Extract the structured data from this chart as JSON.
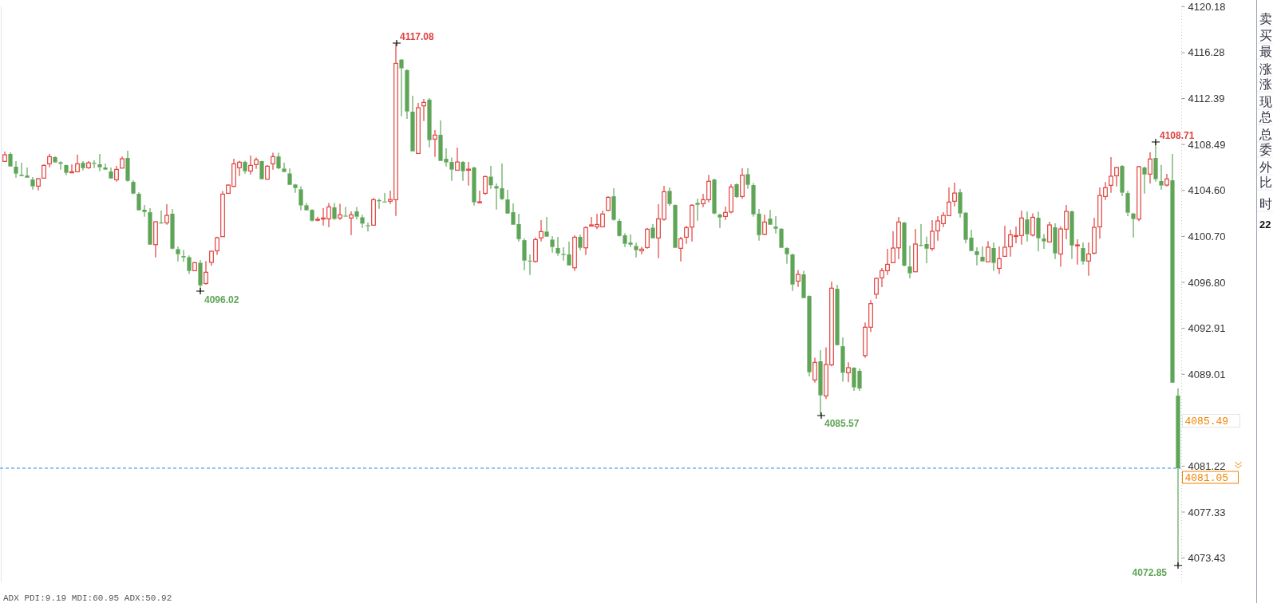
{
  "chart_data": [
    {
      "type": "candlestick",
      "tick_labels": "y",
      "ylim": [
        4071.38,
        4120.2
      ],
      "yticks": [
        4120.18,
        4116.28,
        4112.39,
        4108.49,
        {
          "value": 4104.6,
          "label": "4104.60"
        },
        {
          "value": 4100.7,
          "label": "4100.70"
        },
        {
          "value": 4096.8,
          "label": "4096.80"
        },
        4092.91,
        4089.01,
        4081.22,
        4077.33,
        4073.43
      ],
      "ref_lines": [
        {
          "axis": "y",
          "value": 4081.05,
          "label": "4081.05",
          "color": "#2b8ce8",
          "line_style": "dashed"
        }
      ],
      "annotations": [
        "4117.08",
        "4096.02",
        "4085.57",
        "4108.71",
        "4072.85",
        "4085.49",
        "ADX PDI:9.19 MDI:60.95 ADX:50.92"
      ],
      "ohlc": [
        [
          4107.06,
          4107.89,
          4107.06,
          4107.62
        ],
        [
          4107.69,
          4107.82,
          4106.63,
          4106.63
        ],
        [
          4106.61,
          4107.08,
          4105.68,
          4106.02
        ],
        [
          4105.93,
          4106.94,
          4105.82,
          4105.82
        ],
        [
          4105.86,
          4106.54,
          4105.68,
          4105.68
        ],
        [
          4105.52,
          4105.73,
          4104.67,
          4104.94
        ],
        [
          4104.96,
          4105.66,
          4104.6,
          4105.59
        ],
        [
          4105.64,
          4106.81,
          4105.64,
          4106.72
        ],
        [
          4106.85,
          4107.69,
          4106.56,
          4107.46
        ],
        [
          4107.42,
          4107.49,
          4106.97,
          4106.97
        ],
        [
          4106.99,
          4107.06,
          4106.36,
          4106.85
        ],
        [
          4106.74,
          4106.79,
          4105.89,
          4106.09
        ],
        [
          4106.09,
          4106.81,
          4106.09,
          4106.18
        ],
        [
          4106.18,
          4107.64,
          4106.18,
          4106.85
        ],
        [
          4106.94,
          4107.08,
          4106.29,
          4106.49
        ],
        [
          4106.52,
          4107.08,
          4106.43,
          4106.94
        ],
        [
          4106.94,
          4107.15,
          4106.49,
          4106.85
        ],
        [
          4106.81,
          4107.69,
          4106.22,
          4106.56
        ],
        [
          4106.54,
          4106.88,
          4106.36,
          4106.36
        ],
        [
          4106.2,
          4106.54,
          4105.61,
          4105.61
        ],
        [
          4105.5,
          4106.67,
          4105.34,
          4106.38
        ],
        [
          4106.49,
          4107.49,
          4106.49,
          4107.28
        ],
        [
          4107.35,
          4107.96,
          4105.34,
          4105.41
        ],
        [
          4105.32,
          4105.46,
          4104.28,
          4104.33
        ],
        [
          4104.31,
          4104.44,
          4102.91,
          4102.91
        ],
        [
          4102.96,
          4103.36,
          4102.37,
          4102.77
        ],
        [
          4102.75,
          4103.09,
          4100.0,
          4100.0
        ],
        [
          4100.0,
          4101.99,
          4098.92,
          4101.94
        ],
        [
          4101.88,
          4102.89,
          4101.86,
          4101.86
        ],
        [
          4101.85,
          4103.43,
          4101.69,
          4102.48
        ],
        [
          4102.62,
          4103.02,
          4099.6,
          4099.66
        ],
        [
          4099.62,
          4099.84,
          4098.58,
          4099.19
        ],
        [
          4099.03,
          4099.55,
          4098.54,
          4098.92
        ],
        [
          4098.94,
          4099.08,
          4097.52,
          4097.77
        ],
        [
          4097.79,
          4098.54,
          4097.79,
          4098.47
        ],
        [
          4098.47,
          4098.7,
          4096.02,
          4096.55
        ],
        [
          4096.71,
          4098.61,
          4096.6,
          4097.66
        ],
        [
          4098.5,
          4099.5,
          4098.2,
          4099.44
        ],
        [
          4099.48,
          4100.68,
          4099.14,
          4100.59
        ],
        [
          4100.68,
          4104.55,
          4100.68,
          4104.28
        ],
        [
          4104.35,
          4105.12,
          4104.35,
          4105.05
        ],
        [
          4104.94,
          4107.28,
          4104.87,
          4106.85
        ],
        [
          4106.52,
          4107.12,
          4105.82,
          4106.99
        ],
        [
          4107.01,
          4107.12,
          4106.02,
          4106.22
        ],
        [
          4106.24,
          4107.55,
          4105.95,
          4106.72
        ],
        [
          4106.79,
          4107.39,
          4106.43,
          4107.19
        ],
        [
          4107.08,
          4107.12,
          4105.55,
          4105.55
        ],
        [
          4105.55,
          4106.74,
          4105.55,
          4106.65
        ],
        [
          4106.85,
          4107.8,
          4106.36,
          4107.46
        ],
        [
          4107.48,
          4107.8,
          4106.4,
          4106.47
        ],
        [
          4106.45,
          4106.94,
          4106.16,
          4106.16
        ],
        [
          4106.04,
          4106.45,
          4105.07,
          4105.07
        ],
        [
          4105.1,
          4105.16,
          4104.4,
          4104.8
        ],
        [
          4104.69,
          4104.96,
          4102.91,
          4103.32
        ],
        [
          4103.34,
          4103.54,
          4102.91,
          4102.91
        ],
        [
          4102.95,
          4103.0,
          4101.96,
          4102.03
        ],
        [
          4102.13,
          4102.37,
          4101.98,
          4102.15
        ],
        [
          4102.17,
          4103.09,
          4101.62,
          4102.26
        ],
        [
          4102.19,
          4103.54,
          4101.49,
          4103.2
        ],
        [
          4103.16,
          4103.54,
          4102.1,
          4102.19
        ],
        [
          4102.26,
          4103.47,
          4102.1,
          4102.53
        ],
        [
          4102.46,
          4103.2,
          4102.39,
          4102.39
        ],
        [
          4102.26,
          4102.82,
          4100.81,
          4102.53
        ],
        [
          4102.82,
          4103.2,
          4102.15,
          4102.37
        ],
        [
          4102.32,
          4102.53,
          4101.42,
          4101.78
        ],
        [
          4101.65,
          4101.87,
          4101.11,
          4101.56
        ],
        [
          4101.65,
          4103.95,
          4101.65,
          4103.81
        ],
        [
          4103.77,
          4103.9,
          4103.05,
          4103.68
        ],
        [
          4103.66,
          4104.37,
          4103.59,
          4103.59
        ],
        [
          4103.68,
          4104.58,
          4103.45,
          4103.83
        ],
        [
          4103.81,
          4117.08,
          4102.44,
          4115.37
        ],
        [
          4115.69,
          4115.73,
          4110.89,
          4114.95
        ],
        [
          4114.79,
          4114.85,
          4110.66,
          4111.29
        ],
        [
          4111.27,
          4112.62,
          4107.91,
          4107.91
        ],
        [
          4107.73,
          4112.02,
          4107.73,
          4111.61
        ],
        [
          4111.77,
          4112.35,
          4110.48,
          4112.06
        ],
        [
          4112.29,
          4112.42,
          4108.25,
          4108.86
        ],
        [
          4108.95,
          4109.72,
          4107.44,
          4109.29
        ],
        [
          4109.31,
          4110.53,
          4107.1,
          4107.1
        ],
        [
          4107.28,
          4108.16,
          4106.63,
          4106.97
        ],
        [
          4107.01,
          4107.39,
          4105.41,
          4106.36
        ],
        [
          4106.31,
          4108.23,
          4106.31,
          4107.01
        ],
        [
          4107.01,
          4107.08,
          4105.41,
          4106.22
        ],
        [
          4106.31,
          4107.01,
          4105.01,
          4106.4
        ],
        [
          4106.54,
          4106.61,
          4103.32,
          4103.59
        ],
        [
          4103.59,
          4104.58,
          4103.54,
          4103.63
        ],
        [
          4104.35,
          4105.86,
          4104.22,
          4105.77
        ],
        [
          4105.77,
          4106.67,
          4104.73,
          4105.03
        ],
        [
          4104.96,
          4105.19,
          4102.98,
          4104.76
        ],
        [
          4104.78,
          4106.88,
          4103.79,
          4103.86
        ],
        [
          4103.83,
          4104.64,
          4102.64,
          4102.64
        ],
        [
          4102.75,
          4103.5,
          4101.69,
          4101.69
        ],
        [
          4101.74,
          4102.62,
          4100.27,
          4100.47
        ],
        [
          4100.38,
          4100.54,
          4097.84,
          4098.65
        ],
        [
          4098.65,
          4099.17,
          4097.43,
          4098.6
        ],
        [
          4098.58,
          4100.61,
          4098.47,
          4100.43
        ],
        [
          4100.57,
          4102.08,
          4100.27,
          4101.11
        ],
        [
          4101.11,
          4102.35,
          4100.68,
          4100.68
        ],
        [
          4100.43,
          4100.72,
          4099.33,
          4099.8
        ],
        [
          4099.71,
          4100.66,
          4099.06,
          4099.26
        ],
        [
          4099.21,
          4099.78,
          4098.65,
          4099.12
        ],
        [
          4099.17,
          4100.25,
          4098.24,
          4098.24
        ],
        [
          4098.04,
          4100.79,
          4097.77,
          4100.63
        ],
        [
          4100.66,
          4100.86,
          4099.53,
          4099.73
        ],
        [
          4099.73,
          4101.56,
          4099.12,
          4101.44
        ],
        [
          4101.58,
          4102.35,
          4101.58,
          4101.67
        ],
        [
          4101.51,
          4102.62,
          4101.31,
          4101.71
        ],
        [
          4101.51,
          4102.89,
          4101.51,
          4102.6
        ],
        [
          4102.91,
          4104.1,
          4102.84,
          4104.01
        ],
        [
          4104.1,
          4104.78,
          4102.03,
          4102.1
        ],
        [
          4102.01,
          4102.19,
          4100.68,
          4100.74
        ],
        [
          4100.79,
          4100.97,
          4099.8,
          4100.07
        ],
        [
          4100.18,
          4100.86,
          4099.8,
          4100.0
        ],
        [
          4099.89,
          4100.16,
          4098.92,
          4099.53
        ],
        [
          4099.48,
          4099.82,
          4099.19,
          4099.62
        ],
        [
          4099.75,
          4101.42,
          4099.66,
          4101.31
        ],
        [
          4101.44,
          4101.74,
          4100.54,
          4100.54
        ],
        [
          4100.57,
          4103.43,
          4098.85,
          4102.19
        ],
        [
          4102.15,
          4104.98,
          4102.03,
          4104.49
        ],
        [
          4104.56,
          4104.85,
          4103.29,
          4103.45
        ],
        [
          4103.36,
          4103.41,
          4099.73,
          4099.73
        ],
        [
          4099.69,
          4100.66,
          4098.58,
          4100.5
        ],
        [
          4100.63,
          4101.6,
          4100.07,
          4101.44
        ],
        [
          4101.49,
          4103.43,
          4100.27,
          4103.34
        ],
        [
          4103.54,
          4103.9,
          4102.03,
          4103.38
        ],
        [
          4103.47,
          4104.31,
          4103.18,
          4103.81
        ],
        [
          4103.81,
          4105.91,
          4103.59,
          4105.37
        ],
        [
          4105.52,
          4105.59,
          4102.57,
          4102.64
        ],
        [
          4102.55,
          4102.64,
          4101.42,
          4102.3
        ],
        [
          4102.39,
          4103.23,
          4102.1,
          4102.73
        ],
        [
          4102.77,
          4105.12,
          4102.66,
          4104.89
        ],
        [
          4105.12,
          4105.19,
          4103.97,
          4104.04
        ],
        [
          4104.08,
          4106.47,
          4103.88,
          4105.89
        ],
        [
          4105.98,
          4106.47,
          4104.74,
          4105.07
        ],
        [
          4105.05,
          4105.23,
          4102.37,
          4102.57
        ],
        [
          4102.62,
          4103.02,
          4100.34,
          4100.81
        ],
        [
          4100.88,
          4102.55,
          4100.79,
          4101.92
        ],
        [
          4102.21,
          4102.96,
          4101.69,
          4101.69
        ],
        [
          4101.53,
          4102.41,
          4100.95,
          4101.35
        ],
        [
          4101.35,
          4101.4,
          4099.73,
          4099.73
        ],
        [
          4099.71,
          4099.78,
          4098.38,
          4099.19
        ],
        [
          4099.17,
          4099.24,
          4096.08,
          4096.62
        ],
        [
          4096.91,
          4097.86,
          4096.42,
          4097.48
        ],
        [
          4097.48,
          4097.79,
          4095.47,
          4095.47
        ],
        [
          4095.65,
          4095.7,
          4088.85,
          4089.18
        ],
        [
          4088.53,
          4090.42,
          4088.3,
          4090.02
        ],
        [
          4090.11,
          4091.05,
          4085.57,
          4087.22
        ],
        [
          4087.18,
          4091.3,
          4086.91,
          4089.84
        ],
        [
          4089.81,
          4096.87,
          4089.68,
          4096.31
        ],
        [
          4096.26,
          4096.58,
          4091.48,
          4091.48
        ],
        [
          4091.39,
          4092.14,
          4088.39,
          4089.14
        ],
        [
          4089.14,
          4090.02,
          4088.33,
          4089.57
        ],
        [
          4089.57,
          4089.6,
          4087.6,
          4087.9
        ],
        [
          4089.3,
          4089.5,
          4087.6,
          4087.8
        ],
        [
          4090.6,
          4093.4,
          4090.4,
          4093.0
        ],
        [
          4093.0,
          4095.3,
          4092.6,
          4095.0
        ],
        [
          4095.8,
          4097.2,
          4095.4,
          4097.14
        ],
        [
          4097.19,
          4098.02,
          4096.4,
          4097.79
        ],
        [
          4097.79,
          4099.64,
          4097.43,
          4098.33
        ],
        [
          4098.47,
          4101.13,
          4098.42,
          4099.71
        ],
        [
          4099.73,
          4102.35,
          4098.79,
          4101.92
        ],
        [
          4101.87,
          4101.92,
          4098.15,
          4098.22
        ],
        [
          4098.15,
          4099.91,
          4097.14,
          4097.57
        ],
        [
          4097.7,
          4101.33,
          4097.7,
          4100.05
        ],
        [
          4099.98,
          4101.74,
          4099.87,
          4099.91
        ],
        [
          4100.05,
          4100.68,
          4098.42,
          4099.66
        ],
        [
          4099.66,
          4102.08,
          4099.48,
          4101.13
        ],
        [
          4101.17,
          4102.42,
          4100.34,
          4102.01
        ],
        [
          4101.78,
          4102.75,
          4101.49,
          4102.48
        ],
        [
          4102.46,
          4104.85,
          4102.46,
          4103.61
        ],
        [
          4103.68,
          4105.25,
          4103.25,
          4104.37
        ],
        [
          4104.44,
          4104.71,
          4102.3,
          4102.64
        ],
        [
          4102.71,
          4102.75,
          4100.11,
          4100.41
        ],
        [
          4100.59,
          4101.26,
          4099.46,
          4099.46
        ],
        [
          4099.44,
          4099.78,
          4098.24,
          4099.12
        ],
        [
          4098.97,
          4099.87,
          4098.58,
          4098.58
        ],
        [
          4098.54,
          4100.3,
          4098.49,
          4099.78
        ],
        [
          4099.71,
          4100.18,
          4097.77,
          4098.45
        ],
        [
          4097.99,
          4099.84,
          4097.52,
          4098.81
        ],
        [
          4099.01,
          4101.6,
          4098.99,
          4099.78
        ],
        [
          4099.82,
          4101.26,
          4098.99,
          4100.84
        ],
        [
          4100.75,
          4101.53,
          4100.11,
          4100.77
        ],
        [
          4100.77,
          4102.89,
          4100.0,
          4102.26
        ],
        [
          4102.14,
          4102.8,
          4100.27,
          4100.88
        ],
        [
          4100.81,
          4102.66,
          4100.7,
          4102.32
        ],
        [
          4102.28,
          4102.8,
          4099.42,
          4100.54
        ],
        [
          4100.52,
          4100.9,
          4099.64,
          4100.27
        ],
        [
          4100.23,
          4101.94,
          4100.21,
          4101.67
        ],
        [
          4101.47,
          4101.81,
          4098.79,
          4099.26
        ],
        [
          4099.21,
          4101.56,
          4098.13,
          4101.33
        ],
        [
          4101.31,
          4103.36,
          4100.45,
          4102.82
        ],
        [
          4102.82,
          4102.89,
          4098.79,
          4099.93
        ],
        [
          4099.96,
          4100.45,
          4098.31,
          4099.98
        ],
        [
          4099.71,
          4100.18,
          4098.31,
          4098.58
        ],
        [
          4098.61,
          4100.18,
          4097.37,
          4099.21
        ],
        [
          4099.28,
          4102.28,
          4099.17,
          4101.47
        ],
        [
          4101.51,
          4104.85,
          4100.5,
          4104.17
        ],
        [
          4104.08,
          4105.3,
          4103.79,
          4104.83
        ],
        [
          4105.03,
          4107.42,
          4104.4,
          4105.8
        ],
        [
          4105.84,
          4106.61,
          4104.94,
          4106.54
        ],
        [
          4106.67,
          4106.74,
          4104.13,
          4104.4
        ],
        [
          4104.37,
          4104.56,
          4102.41,
          4102.71
        ],
        [
          4102.64,
          4102.71,
          4100.61,
          4102.17
        ],
        [
          4102.17,
          4106.67,
          4101.99,
          4106.61
        ],
        [
          4106.54,
          4106.61,
          4104.33,
          4105.95
        ],
        [
          4105.98,
          4107.82,
          4105.19,
          4107.26
        ],
        [
          4107.35,
          4108.71,
          4105.34,
          4105.55
        ],
        [
          4105.39,
          4106.76,
          4104.67,
          4105.01
        ],
        [
          4105.05,
          4106.0,
          4104.94,
          4105.57
        ],
        [
          4105.46,
          4107.69,
          4088.3,
          4088.3
        ],
        [
          4087.2,
          4087.82,
          4072.85,
          4081.05
        ]
      ],
      "categories": [
        null,
        null,
        null,
        null,
        null,
        null,
        null,
        null,
        null,
        null,
        null,
        null,
        null,
        null,
        null,
        null,
        null,
        null,
        null,
        null,
        null,
        null,
        null,
        null,
        null,
        null,
        null,
        null,
        null,
        null,
        null,
        null,
        null,
        null,
        null,
        null,
        null,
        null,
        null,
        null,
        null,
        null,
        null,
        null,
        null,
        null,
        null,
        null,
        null,
        null,
        null,
        null,
        null,
        null,
        null,
        null,
        null,
        null,
        null,
        null,
        null,
        null,
        null,
        null,
        null,
        null,
        null,
        null,
        null,
        null,
        null,
        null,
        null,
        null,
        null,
        null,
        null,
        null,
        null,
        null,
        null,
        null,
        null,
        null,
        null,
        null,
        null,
        null,
        null,
        null,
        null,
        null,
        null,
        null,
        null,
        null,
        null,
        null,
        null,
        null,
        null,
        null,
        null,
        null,
        null,
        null,
        null,
        null,
        null,
        null,
        null,
        null,
        null,
        null,
        null,
        null,
        null,
        null,
        null,
        null,
        null,
        null,
        null,
        null,
        null,
        null,
        null,
        null,
        null,
        null,
        null,
        null,
        null,
        null,
        null,
        null,
        null,
        null,
        null,
        null,
        null,
        null,
        null,
        null,
        null,
        null,
        null,
        null,
        null,
        null,
        null,
        null,
        null,
        null,
        null,
        null,
        null,
        null,
        null,
        null,
        null,
        null,
        null,
        null,
        null,
        null,
        null,
        null,
        null,
        null,
        null,
        null,
        null,
        null,
        null,
        null,
        null,
        null,
        null,
        null,
        null,
        null,
        null,
        null,
        null,
        null,
        null,
        null,
        null,
        null,
        null,
        null,
        null,
        null,
        null,
        null,
        null,
        null,
        null,
        null,
        null,
        null,
        null,
        null,
        null,
        null,
        null,
        null,
        null,
        null,
        null
      ]
    },
    {
      "type": "other",
      "annotations": [
        "卖",
        "买",
        "最",
        "涨",
        "涨",
        "现",
        "总",
        "总",
        "委",
        "外",
        "比",
        "时",
        "22"
      ]
    }
  ]
}
